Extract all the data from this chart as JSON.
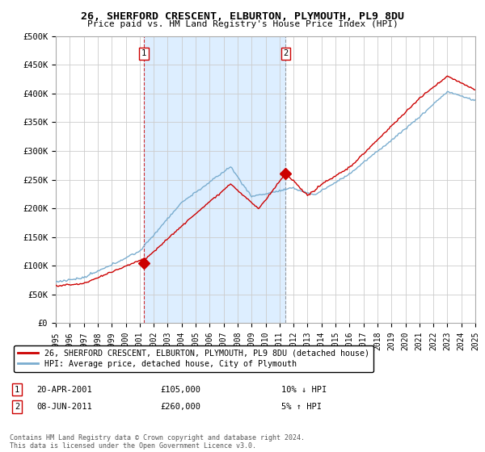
{
  "title": "26, SHERFORD CRESCENT, ELBURTON, PLYMOUTH, PL9 8DU",
  "subtitle": "Price paid vs. HM Land Registry's House Price Index (HPI)",
  "ylabel_ticks": [
    "£0",
    "£50K",
    "£100K",
    "£150K",
    "£200K",
    "£250K",
    "£300K",
    "£350K",
    "£400K",
    "£450K",
    "£500K"
  ],
  "ytick_values": [
    0,
    50000,
    100000,
    150000,
    200000,
    250000,
    300000,
    350000,
    400000,
    450000,
    500000
  ],
  "ylim": [
    0,
    500000
  ],
  "xlim": [
    1995,
    2025
  ],
  "red_color": "#cc0000",
  "blue_color": "#7aadcf",
  "shade_color": "#ddeeff",
  "annotation1": {
    "label": "1",
    "x": 2001.29,
    "date": "20-APR-2001",
    "price": "£105,000",
    "pct": "10% ↓ HPI"
  },
  "annotation2": {
    "label": "2",
    "x": 2011.43,
    "date": "08-JUN-2011",
    "price": "£260,000",
    "pct": "5% ↑ HPI"
  },
  "sale1_x": 2001.29,
  "sale1_y": 105000,
  "sale2_x": 2011.43,
  "sale2_y": 260000,
  "legend_line1": "26, SHERFORD CRESCENT, ELBURTON, PLYMOUTH, PL9 8DU (detached house)",
  "legend_line2": "HPI: Average price, detached house, City of Plymouth",
  "table_row1_date": "20-APR-2001",
  "table_row1_price": "£105,000",
  "table_row1_pct": "10% ↓ HPI",
  "table_row2_date": "08-JUN-2011",
  "table_row2_price": "£260,000",
  "table_row2_pct": "5% ↑ HPI",
  "footnote": "Contains HM Land Registry data © Crown copyright and database right 2024.\nThis data is licensed under the Open Government Licence v3.0.",
  "background_color": "#ffffff",
  "grid_color": "#cccccc"
}
